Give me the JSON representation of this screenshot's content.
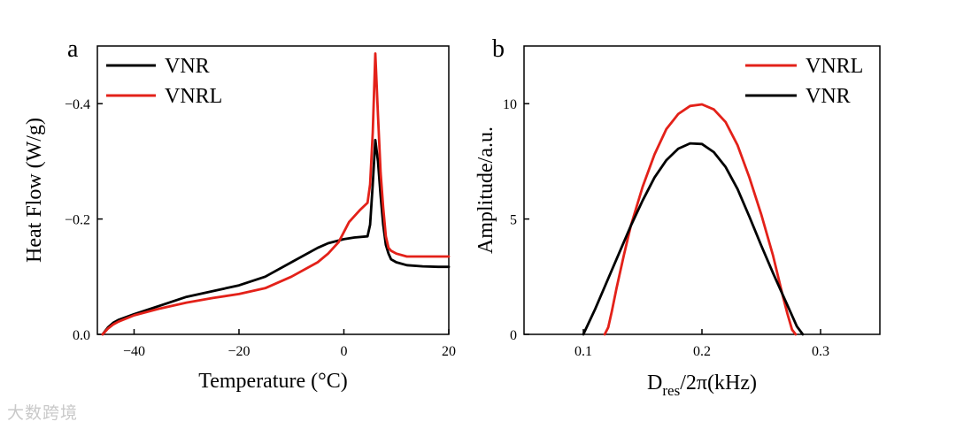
{
  "watermark": "大数跨境",
  "chart_data": [
    {
      "panel": "a",
      "type": "line",
      "xlabel": "Temperature (°C)",
      "ylabel": "Heat Flow (W/g)",
      "xlim": [
        -47,
        20
      ],
      "ylim": [
        0.0,
        -0.5
      ],
      "xticks": [
        -40,
        -20,
        0,
        20
      ],
      "xtick_labels": [
        "−40",
        "−20",
        "0",
        "20"
      ],
      "yticks": [
        0.0,
        -0.2,
        -0.4
      ],
      "ytick_labels": [
        "0.0",
        "−0.2",
        "−0.4"
      ],
      "legend_position": "top-left",
      "series": [
        {
          "name": "VNR",
          "color": "#000000",
          "x": [
            -46,
            -45,
            -44,
            -43,
            -40,
            -35,
            -30,
            -25,
            -20,
            -15,
            -10,
            -5,
            -3,
            0,
            2,
            4.5,
            5,
            5.5,
            6,
            6.5,
            7,
            7.5,
            8,
            8.5,
            9,
            10,
            12,
            15,
            18,
            20
          ],
          "y": [
            0,
            -0.012,
            -0.02,
            -0.025,
            -0.035,
            -0.05,
            -0.065,
            -0.075,
            -0.085,
            -0.1,
            -0.125,
            -0.15,
            -0.158,
            -0.165,
            -0.168,
            -0.17,
            -0.19,
            -0.26,
            -0.337,
            -0.3,
            -0.24,
            -0.19,
            -0.155,
            -0.14,
            -0.13,
            -0.125,
            -0.12,
            -0.118,
            -0.117,
            -0.117
          ]
        },
        {
          "name": "VNRL",
          "color": "#e32119",
          "x": [
            -46,
            -45,
            -44,
            -43,
            -40,
            -35,
            -30,
            -25,
            -20,
            -15,
            -10,
            -5,
            -3,
            -1,
            1,
            3,
            4.5,
            5,
            5.5,
            6,
            6.5,
            7,
            7.5,
            8,
            8.5,
            9,
            10,
            12,
            15,
            18,
            20
          ],
          "y": [
            0,
            -0.01,
            -0.017,
            -0.022,
            -0.033,
            -0.045,
            -0.055,
            -0.063,
            -0.07,
            -0.08,
            -0.1,
            -0.125,
            -0.14,
            -0.16,
            -0.195,
            -0.215,
            -0.228,
            -0.26,
            -0.35,
            -0.487,
            -0.38,
            -0.28,
            -0.22,
            -0.17,
            -0.15,
            -0.145,
            -0.14,
            -0.135,
            -0.135,
            -0.135,
            -0.135
          ]
        }
      ]
    },
    {
      "panel": "b",
      "type": "line",
      "xlabel_main": "D",
      "xlabel_sub": "res",
      "xlabel_rest": "/2π(kHz)",
      "ylabel": "Amplitude/a.u.",
      "xlim": [
        0.05,
        0.35
      ],
      "ylim": [
        0,
        12.5
      ],
      "xticks": [
        0.1,
        0.2,
        0.3
      ],
      "xtick_labels": [
        "0.1",
        "0.2",
        "0.3"
      ],
      "yticks": [
        0,
        5,
        10
      ],
      "ytick_labels": [
        "0",
        "5",
        "10"
      ],
      "legend_position": "top-right",
      "series": [
        {
          "name": "VNRL",
          "color": "#e32119",
          "x": [
            0.118,
            0.121,
            0.124,
            0.128,
            0.134,
            0.14,
            0.15,
            0.16,
            0.17,
            0.18,
            0.19,
            0.2,
            0.21,
            0.22,
            0.23,
            0.24,
            0.25,
            0.26,
            0.268,
            0.272,
            0.276,
            0.279
          ],
          "y": [
            0,
            0.3,
            1.0,
            2.0,
            3.4,
            4.7,
            6.4,
            7.8,
            8.9,
            9.55,
            9.9,
            9.97,
            9.75,
            9.2,
            8.2,
            6.8,
            5.2,
            3.4,
            1.7,
            0.9,
            0.2,
            0
          ]
        },
        {
          "name": "VNR",
          "color": "#000000",
          "x": [
            0.1,
            0.11,
            0.12,
            0.13,
            0.14,
            0.15,
            0.16,
            0.17,
            0.18,
            0.19,
            0.2,
            0.21,
            0.22,
            0.23,
            0.24,
            0.25,
            0.26,
            0.27,
            0.28,
            0.285
          ],
          "y": [
            0,
            1.1,
            2.3,
            3.5,
            4.7,
            5.8,
            6.8,
            7.55,
            8.05,
            8.28,
            8.25,
            7.9,
            7.25,
            6.3,
            5.1,
            3.85,
            2.65,
            1.5,
            0.35,
            0
          ]
        }
      ]
    }
  ]
}
